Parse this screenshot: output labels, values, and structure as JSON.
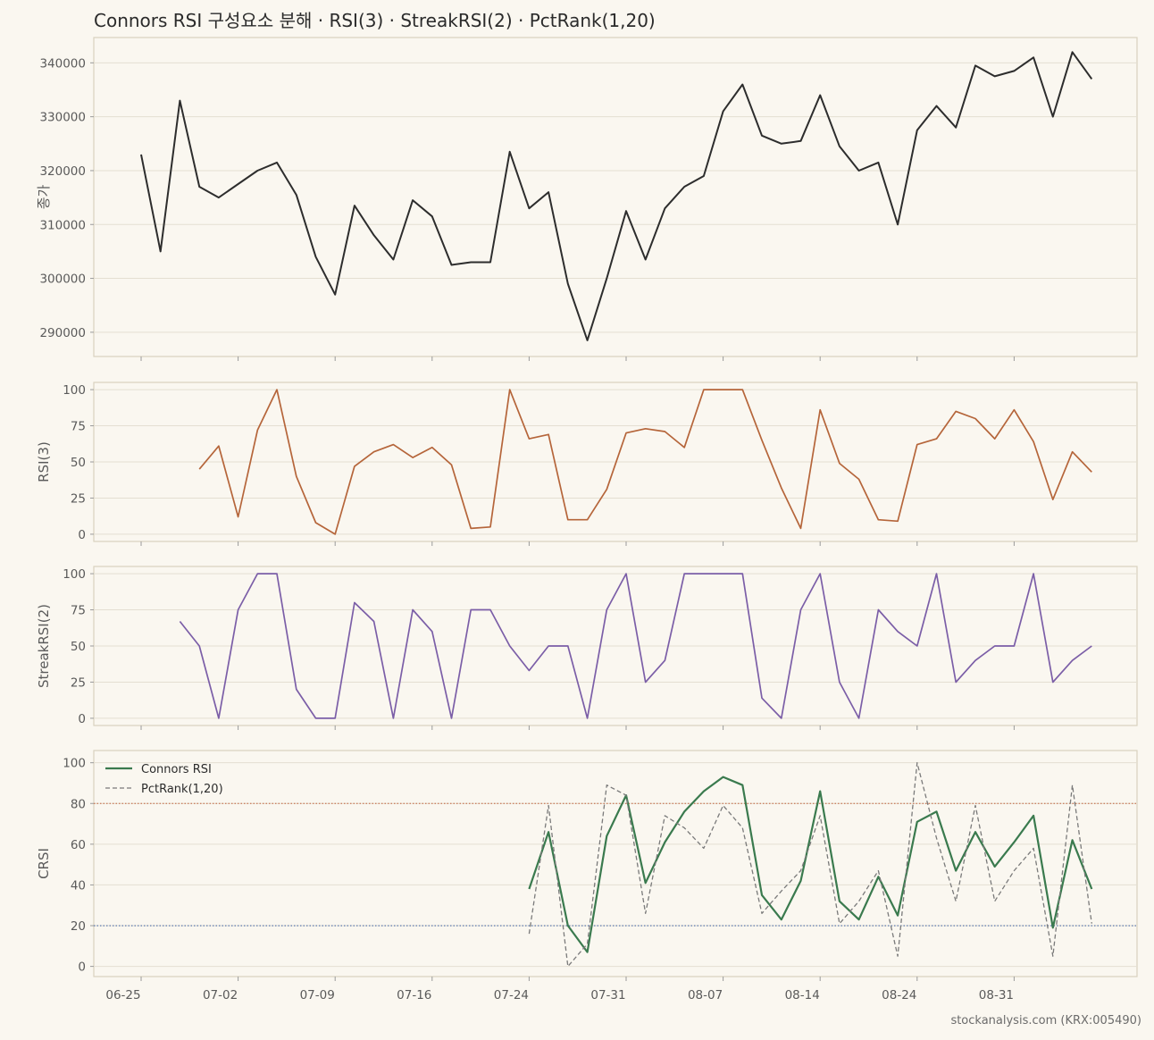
{
  "title": "Connors RSI 구성요소 분해 · RSI(3) · StreakRSI(2) · PctRank(1,20)",
  "watermark": "stockanalysis.com (KRX:005490)",
  "colors": {
    "background": "#faf7f0",
    "panel_border": "#d8d2bf",
    "grid": "#e4dfd2",
    "close": "#2d2d2d",
    "rsi": "#b5653a",
    "streak": "#7b5ea7",
    "crsi": "#3a7a4e",
    "pctrank": "#7a7a7a",
    "overbought": "#c0603a",
    "oversold": "#4a6aa8"
  },
  "chart_data": {
    "type": "line",
    "x_axis": {
      "tick_labels": [
        "06-25",
        "07-02",
        "07-09",
        "07-16",
        "07-24",
        "07-31",
        "08-07",
        "08-14",
        "08-24",
        "08-31"
      ],
      "tick_index": [
        0,
        5,
        10,
        15,
        20,
        25,
        30,
        35,
        40,
        45
      ]
    },
    "x_count": 50,
    "panels": [
      {
        "ylabel": "종가",
        "ylim": [
          285500,
          344700
        ],
        "yticks": [
          290000,
          300000,
          310000,
          320000,
          330000,
          340000
        ],
        "series": [
          {
            "key": "close",
            "style": "solid",
            "values": [
              323000,
              305000,
              333000,
              317000,
              315000,
              317500,
              320000,
              321500,
              315500,
              304000,
              297000,
              313500,
              308000,
              303500,
              314500,
              311500,
              302500,
              303000,
              303000,
              323500,
              313000,
              316000,
              299000,
              288500,
              300000,
              312500,
              303500,
              313000,
              317000,
              319000,
              331000,
              336000,
              326500,
              325000,
              325500,
              334000,
              324500,
              320000,
              321500,
              310000,
              327500,
              332000,
              328000,
              339500,
              337500,
              338500,
              341000,
              330000,
              342000,
              337000
            ]
          }
        ]
      },
      {
        "ylabel": "RSI(3)",
        "ylim": [
          -5,
          105
        ],
        "yticks": [
          0,
          25,
          50,
          75,
          100
        ],
        "series": [
          {
            "key": "rsi",
            "style": "solid",
            "values": [
              null,
              null,
              null,
              45,
              61,
              12,
              72,
              100,
              40,
              8,
              0,
              47,
              57,
              62,
              53,
              60,
              48,
              4,
              5,
              100,
              66,
              69,
              10,
              10,
              31,
              70,
              73,
              71,
              60,
              100,
              100,
              100,
              65,
              32,
              4,
              86,
              49,
              38,
              10,
              9,
              62,
              66,
              85,
              80,
              66,
              86,
              64,
              24,
              57,
              43
            ]
          }
        ]
      },
      {
        "ylabel": "StreakRSI(2)",
        "ylim": [
          -5,
          105
        ],
        "yticks": [
          0,
          25,
          50,
          75,
          100
        ],
        "series": [
          {
            "key": "streak",
            "style": "solid",
            "values": [
              null,
              null,
              67,
              50,
              0,
              75,
              100,
              100,
              20,
              0,
              0,
              80,
              67,
              0,
              75,
              60,
              0,
              75,
              75,
              50,
              33,
              50,
              50,
              0,
              75,
              100,
              25,
              40,
              100,
              100,
              100,
              100,
              14,
              0,
              75,
              100,
              25,
              0,
              75,
              60,
              50,
              100,
              25,
              40,
              50,
              50,
              100,
              25,
              40,
              50
            ]
          }
        ]
      },
      {
        "ylabel": "CRSI",
        "ylim": [
          -5,
          106
        ],
        "yticks": [
          0,
          20,
          40,
          60,
          80,
          100
        ],
        "hlines": [
          {
            "y": 80,
            "key": "overbought"
          },
          {
            "y": 20,
            "key": "oversold"
          }
        ],
        "legend": {
          "placement": "top-left"
        },
        "series": [
          {
            "key": "crsi",
            "name": "Connors RSI",
            "style": "solid",
            "values": [
              null,
              null,
              null,
              null,
              null,
              null,
              null,
              null,
              null,
              null,
              null,
              null,
              null,
              null,
              null,
              null,
              null,
              null,
              null,
              null,
              38,
              66,
              20,
              7,
              64,
              84,
              41,
              61,
              76,
              86,
              93,
              89,
              35,
              23,
              42,
              86,
              32,
              23,
              44,
              25,
              71,
              76,
              47,
              66,
              49,
              61,
              74,
              19,
              62,
              38
            ]
          },
          {
            "key": "pctrank",
            "name": "PctRank(1,20)",
            "style": "dashed",
            "values": [
              null,
              null,
              null,
              null,
              null,
              null,
              null,
              null,
              null,
              null,
              null,
              null,
              null,
              null,
              null,
              null,
              null,
              null,
              null,
              null,
              16,
              79,
              0,
              11,
              89,
              84,
              26,
              74,
              68,
              58,
              79,
              68,
              26,
              37,
              47,
              74,
              21,
              32,
              47,
              5,
              100,
              63,
              32,
              79,
              32,
              47,
              58,
              5,
              89,
              21
            ]
          }
        ]
      }
    ]
  }
}
